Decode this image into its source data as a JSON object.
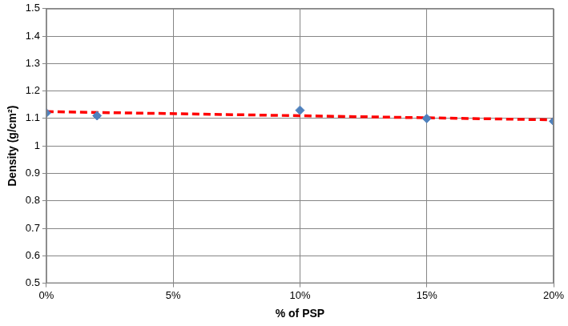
{
  "chart_data": {
    "type": "scatter",
    "x_label": "% of PSP",
    "y_label": "Density (g/cm²)",
    "series": [
      {
        "type": "scatter",
        "color": "#4f81bd",
        "marker": "diamond",
        "x": [
          0,
          2,
          10,
          15,
          20
        ],
        "values": [
          1.12,
          1.11,
          1.13,
          1.1,
          1.09
        ]
      },
      {
        "type": "line",
        "color": "#ff0000",
        "line_style": "dashed",
        "x": [
          0,
          20
        ],
        "values": [
          1.125,
          1.095
        ]
      }
    ],
    "xlim": [
      0,
      20
    ],
    "xticks": [
      {
        "value": 0,
        "label": "0%"
      },
      {
        "value": 5,
        "label": "5%"
      },
      {
        "value": 10,
        "label": "10%"
      },
      {
        "value": 15,
        "label": "15%"
      },
      {
        "value": 20,
        "label": "20%"
      }
    ],
    "ylim": [
      0.5,
      1.5
    ],
    "yticks": [
      0.5,
      0.6,
      0.7,
      0.8,
      0.9,
      1,
      1.1,
      1.2,
      1.3,
      1.4,
      1.5
    ],
    "grid": true
  }
}
